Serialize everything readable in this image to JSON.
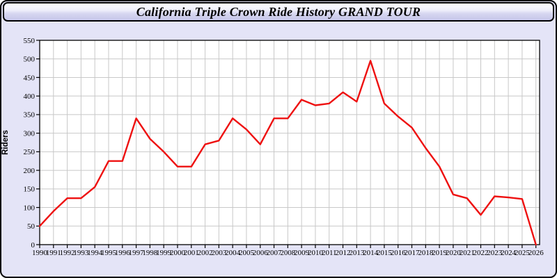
{
  "window": {
    "title": "California Triple Crown Ride History GRAND TOUR"
  },
  "colors": {
    "panel_bg": "#e4e4f7",
    "plot_bg": "#ffffff",
    "grid": "#c8c8c8",
    "axis": "#000000",
    "line": "#ee1010",
    "titlebar_top": "#fefeff",
    "titlebar_bottom": "#c6c6e9",
    "frame_border": "#000000"
  },
  "chart_data": {
    "type": "line",
    "title": "California Triple Crown Ride History GRAND TOUR",
    "xlabel": "",
    "ylabel": "Riders",
    "ylim": [
      0,
      550
    ],
    "ytick_step": 50,
    "grid": true,
    "legend": "none",
    "x": [
      1990,
      1991,
      1992,
      1993,
      1994,
      1995,
      1996,
      1997,
      1998,
      1999,
      2000,
      2001,
      2002,
      2003,
      2004,
      2005,
      2006,
      2007,
      2008,
      2009,
      2010,
      2011,
      2012,
      2013,
      2014,
      2015,
      2016,
      2017,
      2018,
      2019,
      2020,
      2021,
      2022,
      2023,
      2024,
      2025,
      2026
    ],
    "series": [
      {
        "name": "Riders",
        "color": "#ee1010",
        "values": [
          50,
          90,
          125,
          125,
          155,
          225,
          225,
          340,
          285,
          250,
          210,
          210,
          270,
          280,
          340,
          310,
          270,
          340,
          340,
          390,
          375,
          380,
          410,
          385,
          495,
          380,
          345,
          315,
          260,
          210,
          135,
          125,
          80,
          130,
          127,
          123,
          0
        ]
      }
    ]
  }
}
